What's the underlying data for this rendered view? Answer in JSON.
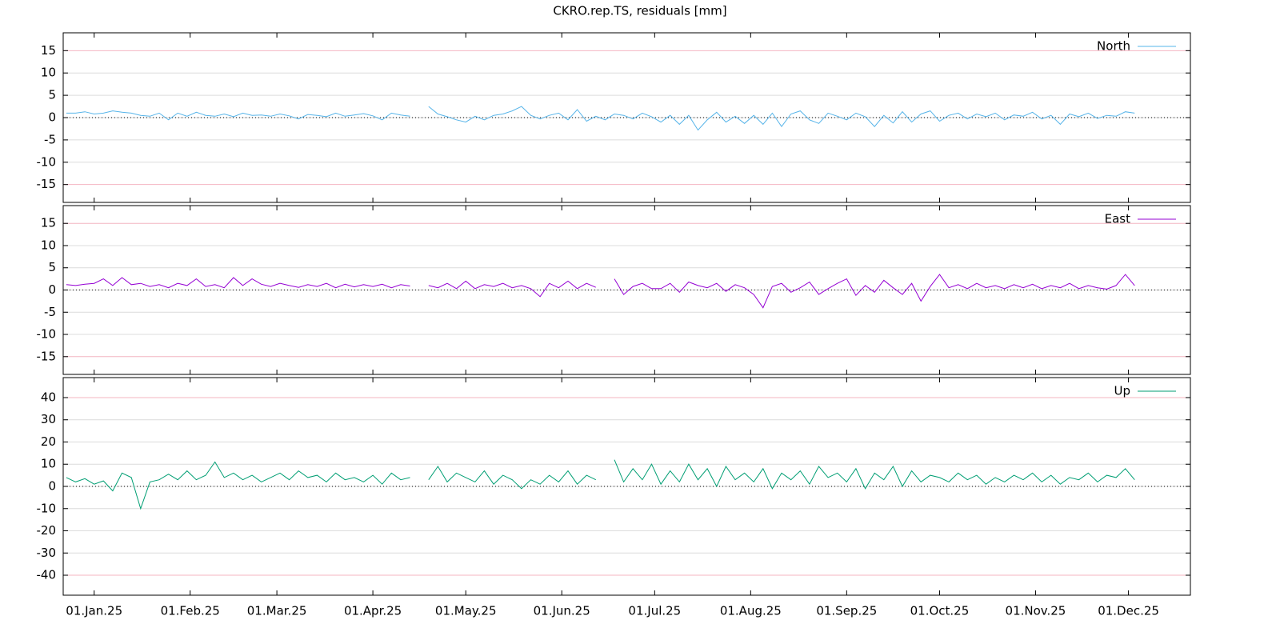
{
  "chart_data": [
    {
      "type": "line",
      "title": "CKRO.rep.TS, residuals [mm]",
      "legend": "upper right",
      "grid": true,
      "xlim": [
        "2024-12-22",
        "2025-12-21"
      ],
      "ylim": [
        -19,
        19
      ],
      "yticks": [
        -15,
        -10,
        -5,
        0,
        5,
        10,
        15
      ],
      "x": [
        "2024-12-23",
        "2024-12-26",
        "2024-12-29",
        "2025-01-01",
        "2025-01-04",
        "2025-01-07",
        "2025-01-10",
        "2025-01-13",
        "2025-01-16",
        "2025-01-19",
        "2025-01-22",
        "2025-01-25",
        "2025-01-28",
        "2025-01-31",
        "2025-02-03",
        "2025-02-06",
        "2025-02-09",
        "2025-02-12",
        "2025-02-15",
        "2025-02-18",
        "2025-02-21",
        "2025-02-24",
        "2025-02-27",
        "2025-03-02",
        "2025-03-05",
        "2025-03-08",
        "2025-03-11",
        "2025-03-14",
        "2025-03-17",
        "2025-03-20",
        "2025-03-23",
        "2025-03-26",
        "2025-03-29",
        "2025-04-01",
        "2025-04-04",
        "2025-04-07",
        "2025-04-10",
        "2025-04-13",
        "2025-04-16",
        "2025-04-19",
        "2025-04-22",
        "2025-04-25",
        "2025-04-28",
        "2025-05-01",
        "2025-05-04",
        "2025-05-07",
        "2025-05-10",
        "2025-05-13",
        "2025-05-16",
        "2025-05-19",
        "2025-05-22",
        "2025-05-25",
        "2025-05-28",
        "2025-05-31",
        "2025-06-03",
        "2025-06-06",
        "2025-06-09",
        "2025-06-12",
        "2025-06-15",
        "2025-06-18",
        "2025-06-21",
        "2025-06-24",
        "2025-06-27",
        "2025-06-30",
        "2025-07-03",
        "2025-07-06",
        "2025-07-09",
        "2025-07-12",
        "2025-07-15",
        "2025-07-18",
        "2025-07-21",
        "2025-07-24",
        "2025-07-27",
        "2025-07-30",
        "2025-08-02",
        "2025-08-05",
        "2025-08-08",
        "2025-08-11",
        "2025-08-14",
        "2025-08-17",
        "2025-08-20",
        "2025-08-23",
        "2025-08-26",
        "2025-08-29",
        "2025-09-01",
        "2025-09-04",
        "2025-09-07",
        "2025-09-10",
        "2025-09-13",
        "2025-09-16",
        "2025-09-19",
        "2025-09-22",
        "2025-09-25",
        "2025-09-28",
        "2025-10-01",
        "2025-10-04",
        "2025-10-07",
        "2025-10-10",
        "2025-10-13",
        "2025-10-16",
        "2025-10-19",
        "2025-10-22",
        "2025-10-25",
        "2025-10-28",
        "2025-10-31",
        "2025-11-03",
        "2025-11-06",
        "2025-11-09",
        "2025-11-12",
        "2025-11-15",
        "2025-11-18",
        "2025-11-21",
        "2025-11-24",
        "2025-11-27",
        "2025-11-30",
        "2025-12-03"
      ],
      "series": [
        {
          "name": "North",
          "color": "#56b4e9",
          "values": [
            1,
            1,
            1.3,
            0.8,
            1,
            1.5,
            1.2,
            1,
            0.5,
            0.3,
            1,
            -0.5,
            1,
            0.3,
            1.2,
            0.5,
            0.3,
            0.8,
            0.2,
            1,
            0.5,
            0.6,
            0.3,
            0.8,
            0.4,
            -0.3,
            0.7,
            0.5,
            0.2,
            1,
            0.3,
            0.6,
            0.9,
            0.4,
            -0.5,
            1,
            0.6,
            0.3,
            null,
            2.5,
            0.8,
            0.2,
            -0.5,
            -1,
            0.3,
            -0.5,
            0.5,
            0.8,
            1.5,
            2.5,
            0.5,
            -0.3,
            0.5,
            1,
            -0.5,
            1.8,
            -0.8,
            0.3,
            -0.5,
            0.8,
            0.5,
            -0.3,
            1,
            0.2,
            -1,
            0.5,
            -1.5,
            0.5,
            -2.8,
            -0.5,
            1.2,
            -1,
            0.3,
            -1.3,
            0.5,
            -1.5,
            1,
            -2,
            0.8,
            1.5,
            -0.5,
            -1.3,
            1,
            0.3,
            -0.5,
            1,
            0.2,
            -2,
            0.5,
            -1.2,
            1.3,
            -1,
            0.8,
            1.5,
            -0.8,
            0.5,
            1,
            -0.3,
            0.8,
            0.2,
            1,
            -0.5,
            0.6,
            0.3,
            1.2,
            -0.3,
            0.5,
            -1.5,
            0.8,
            0.2,
            1,
            -0.2,
            0.5,
            0.3,
            1.3,
            1
          ]
        }
      ]
    },
    {
      "type": "line",
      "legend": "upper right",
      "grid": true,
      "xlim": [
        "2024-12-22",
        "2025-12-21"
      ],
      "ylim": [
        -19,
        19
      ],
      "yticks": [
        -15,
        -10,
        -5,
        0,
        5,
        10,
        15
      ],
      "x": [
        "2024-12-23",
        "2024-12-26",
        "2024-12-29",
        "2025-01-01",
        "2025-01-04",
        "2025-01-07",
        "2025-01-10",
        "2025-01-13",
        "2025-01-16",
        "2025-01-19",
        "2025-01-22",
        "2025-01-25",
        "2025-01-28",
        "2025-01-31",
        "2025-02-03",
        "2025-02-06",
        "2025-02-09",
        "2025-02-12",
        "2025-02-15",
        "2025-02-18",
        "2025-02-21",
        "2025-02-24",
        "2025-02-27",
        "2025-03-02",
        "2025-03-05",
        "2025-03-08",
        "2025-03-11",
        "2025-03-14",
        "2025-03-17",
        "2025-03-20",
        "2025-03-23",
        "2025-03-26",
        "2025-03-29",
        "2025-04-01",
        "2025-04-04",
        "2025-04-07",
        "2025-04-10",
        "2025-04-13",
        "2025-04-16",
        "2025-04-19",
        "2025-04-22",
        "2025-04-25",
        "2025-04-28",
        "2025-05-01",
        "2025-05-04",
        "2025-05-07",
        "2025-05-10",
        "2025-05-13",
        "2025-05-16",
        "2025-05-19",
        "2025-05-22",
        "2025-05-25",
        "2025-05-28",
        "2025-05-31",
        "2025-06-03",
        "2025-06-06",
        "2025-06-09",
        "2025-06-12",
        "2025-06-15",
        "2025-06-18",
        "2025-06-21",
        "2025-06-24",
        "2025-06-27",
        "2025-06-30",
        "2025-07-03",
        "2025-07-06",
        "2025-07-09",
        "2025-07-12",
        "2025-07-15",
        "2025-07-18",
        "2025-07-21",
        "2025-07-24",
        "2025-07-27",
        "2025-07-30",
        "2025-08-02",
        "2025-08-05",
        "2025-08-08",
        "2025-08-11",
        "2025-08-14",
        "2025-08-17",
        "2025-08-20",
        "2025-08-23",
        "2025-08-26",
        "2025-08-29",
        "2025-09-01",
        "2025-09-04",
        "2025-09-07",
        "2025-09-10",
        "2025-09-13",
        "2025-09-16",
        "2025-09-19",
        "2025-09-22",
        "2025-09-25",
        "2025-09-28",
        "2025-10-01",
        "2025-10-04",
        "2025-10-07",
        "2025-10-10",
        "2025-10-13",
        "2025-10-16",
        "2025-10-19",
        "2025-10-22",
        "2025-10-25",
        "2025-10-28",
        "2025-10-31",
        "2025-11-03",
        "2025-11-06",
        "2025-11-09",
        "2025-11-12",
        "2025-11-15",
        "2025-11-18",
        "2025-11-21",
        "2025-11-24",
        "2025-11-27",
        "2025-11-30",
        "2025-12-03"
      ],
      "series": [
        {
          "name": "East",
          "color": "#9400d3",
          "values": [
            1.2,
            1,
            1.3,
            1.5,
            2.5,
            1,
            2.8,
            1.2,
            1.5,
            0.8,
            1.2,
            0.5,
            1.5,
            1,
            2.5,
            0.8,
            1.2,
            0.5,
            2.8,
            1,
            2.5,
            1.3,
            0.8,
            1.5,
            1,
            0.6,
            1.2,
            0.8,
            1.5,
            0.5,
            1.3,
            0.7,
            1.2,
            0.8,
            1.3,
            0.5,
            1.2,
            0.9,
            null,
            1,
            0.5,
            1.5,
            0.3,
            2,
            0.3,
            1.2,
            0.8,
            1.5,
            0.5,
            1,
            0.3,
            -1.5,
            1.5,
            0.5,
            2,
            0.3,
            1.5,
            0.6,
            null,
            2.5,
            -1,
            0.8,
            1.5,
            0.3,
            0.3,
            1.5,
            -0.5,
            1.8,
            1,
            0.5,
            1.5,
            -0.3,
            1.2,
            0.5,
            -1,
            -4,
            0.8,
            1.5,
            -0.5,
            0.5,
            1.8,
            -1,
            0.3,
            1.5,
            2.5,
            -1.2,
            1,
            -0.5,
            2.2,
            0.5,
            -1,
            1.5,
            -2.5,
            0.8,
            3.5,
            0.5,
            1.2,
            0.3,
            1.5,
            0.5,
            1,
            0.3,
            1.2,
            0.5,
            1.3,
            0.3,
            1,
            0.5,
            1.5,
            0.3,
            1,
            0.5,
            0.2,
            1,
            3.5,
            1
          ]
        }
      ]
    },
    {
      "type": "line",
      "legend": "upper right",
      "grid": true,
      "xlim": [
        "2024-12-22",
        "2025-12-21"
      ],
      "ylim": [
        -49,
        49
      ],
      "yticks": [
        -40,
        -30,
        -20,
        -10,
        0,
        10,
        20,
        30,
        40
      ],
      "xticks": [
        {
          "value": "2025-01-01",
          "label": "01.Jan.25"
        },
        {
          "value": "2025-02-01",
          "label": "01.Feb.25"
        },
        {
          "value": "2025-03-01",
          "label": "01.Mar.25"
        },
        {
          "value": "2025-04-01",
          "label": "01.Apr.25"
        },
        {
          "value": "2025-05-01",
          "label": "01.May.25"
        },
        {
          "value": "2025-06-01",
          "label": "01.Jun.25"
        },
        {
          "value": "2025-07-01",
          "label": "01.Jul.25"
        },
        {
          "value": "2025-08-01",
          "label": "01.Aug.25"
        },
        {
          "value": "2025-09-01",
          "label": "01.Sep.25"
        },
        {
          "value": "2025-10-01",
          "label": "01.Oct.25"
        },
        {
          "value": "2025-11-01",
          "label": "01.Nov.25"
        },
        {
          "value": "2025-12-01",
          "label": "01.Dec.25"
        }
      ],
      "x": [
        "2024-12-23",
        "2024-12-26",
        "2024-12-29",
        "2025-01-01",
        "2025-01-04",
        "2025-01-07",
        "2025-01-10",
        "2025-01-13",
        "2025-01-16",
        "2025-01-19",
        "2025-01-22",
        "2025-01-25",
        "2025-01-28",
        "2025-01-31",
        "2025-02-03",
        "2025-02-06",
        "2025-02-09",
        "2025-02-12",
        "2025-02-15",
        "2025-02-18",
        "2025-02-21",
        "2025-02-24",
        "2025-02-27",
        "2025-03-02",
        "2025-03-05",
        "2025-03-08",
        "2025-03-11",
        "2025-03-14",
        "2025-03-17",
        "2025-03-20",
        "2025-03-23",
        "2025-03-26",
        "2025-03-29",
        "2025-04-01",
        "2025-04-04",
        "2025-04-07",
        "2025-04-10",
        "2025-04-13",
        "2025-04-16",
        "2025-04-19",
        "2025-04-22",
        "2025-04-25",
        "2025-04-28",
        "2025-05-01",
        "2025-05-04",
        "2025-05-07",
        "2025-05-10",
        "2025-05-13",
        "2025-05-16",
        "2025-05-19",
        "2025-05-22",
        "2025-05-25",
        "2025-05-28",
        "2025-05-31",
        "2025-06-03",
        "2025-06-06",
        "2025-06-09",
        "2025-06-12",
        "2025-06-15",
        "2025-06-18",
        "2025-06-21",
        "2025-06-24",
        "2025-06-27",
        "2025-06-30",
        "2025-07-03",
        "2025-07-06",
        "2025-07-09",
        "2025-07-12",
        "2025-07-15",
        "2025-07-18",
        "2025-07-21",
        "2025-07-24",
        "2025-07-27",
        "2025-07-30",
        "2025-08-02",
        "2025-08-05",
        "2025-08-08",
        "2025-08-11",
        "2025-08-14",
        "2025-08-17",
        "2025-08-20",
        "2025-08-23",
        "2025-08-26",
        "2025-08-29",
        "2025-09-01",
        "2025-09-04",
        "2025-09-07",
        "2025-09-10",
        "2025-09-13",
        "2025-09-16",
        "2025-09-19",
        "2025-09-22",
        "2025-09-25",
        "2025-09-28",
        "2025-10-01",
        "2025-10-04",
        "2025-10-07",
        "2025-10-10",
        "2025-10-13",
        "2025-10-16",
        "2025-10-19",
        "2025-10-22",
        "2025-10-25",
        "2025-10-28",
        "2025-10-31",
        "2025-11-03",
        "2025-11-06",
        "2025-11-09",
        "2025-11-12",
        "2025-11-15",
        "2025-11-18",
        "2025-11-21",
        "2025-11-24",
        "2025-11-27",
        "2025-11-30",
        "2025-12-03"
      ],
      "series": [
        {
          "name": "Up",
          "color": "#009e73",
          "values": [
            4,
            2,
            3.5,
            1,
            2.5,
            -2,
            6,
            4,
            -10,
            2,
            3,
            5.5,
            3,
            7,
            3,
            5,
            11,
            4,
            6,
            3,
            5,
            2,
            4,
            6,
            3,
            7,
            4,
            5,
            2,
            6,
            3,
            4,
            2,
            5,
            1,
            6,
            3,
            4,
            null,
            3,
            9,
            2,
            6,
            4,
            2,
            7,
            1,
            5,
            3,
            -1,
            3,
            1,
            5,
            2,
            7,
            1,
            5,
            3,
            null,
            12,
            2,
            8,
            3,
            10,
            1,
            7,
            2,
            10,
            3,
            8,
            0,
            9,
            3,
            6,
            2,
            8,
            -1,
            6,
            3,
            7,
            1,
            9,
            4,
            6,
            2,
            8,
            -1,
            6,
            3,
            9,
            0,
            7,
            2,
            5,
            4,
            2,
            6,
            3,
            5,
            1,
            4,
            2,
            5,
            3,
            6,
            2,
            5,
            1,
            4,
            3,
            6,
            2,
            5,
            4,
            8,
            3
          ]
        }
      ]
    }
  ]
}
